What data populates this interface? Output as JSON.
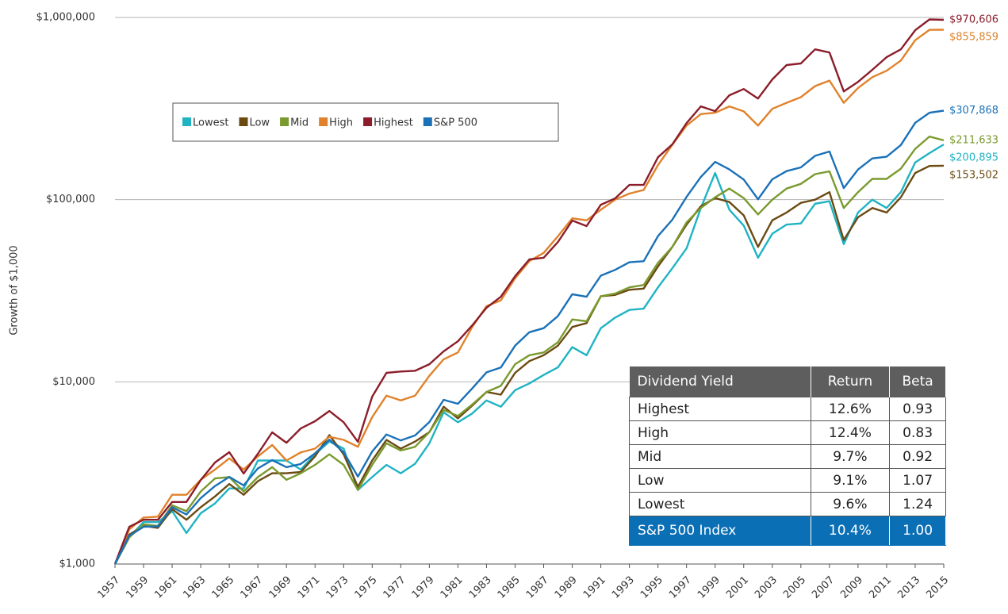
{
  "chart_data": {
    "type": "line",
    "y_label": "Growth of $1,000",
    "log_y": true,
    "grid": true,
    "x": [
      1957,
      1958,
      1959,
      1960,
      1961,
      1962,
      1963,
      1964,
      1965,
      1966,
      1967,
      1968,
      1969,
      1970,
      1971,
      1972,
      1973,
      1974,
      1975,
      1976,
      1977,
      1978,
      1979,
      1980,
      1981,
      1982,
      1983,
      1984,
      1985,
      1986,
      1987,
      1988,
      1989,
      1990,
      1991,
      1992,
      1993,
      1994,
      1995,
      1996,
      1997,
      1998,
      1999,
      2000,
      2001,
      2002,
      2003,
      2004,
      2005,
      2006,
      2007,
      2008,
      2009,
      2010,
      2011,
      2012,
      2013,
      2014,
      2015
    ],
    "xlim": [
      1957,
      2015
    ],
    "xticks": [
      1957,
      1959,
      1961,
      1963,
      1965,
      1967,
      1969,
      1971,
      1973,
      1975,
      1977,
      1979,
      1981,
      1983,
      1985,
      1987,
      1989,
      1991,
      1993,
      1995,
      1997,
      1999,
      2001,
      2003,
      2005,
      2007,
      2009,
      2011,
      2013,
      2015
    ],
    "ylim": [
      1000,
      1000000
    ],
    "yticks": [
      {
        "value": 1000,
        "label": "$1,000"
      },
      {
        "value": 10000,
        "label": "$10,000"
      },
      {
        "value": 100000,
        "label": "$100,000"
      },
      {
        "value": 1000000,
        "label": "$1,000,000"
      }
    ],
    "series": [
      {
        "name": "Lowest",
        "color": "#1fb3c3",
        "end_label": "$200,895",
        "values": [
          1000,
          1400,
          1700,
          1700,
          1950,
          1480,
          1900,
          2150,
          2600,
          2600,
          3700,
          3700,
          3700,
          3300,
          4000,
          4700,
          4300,
          2550,
          3000,
          3500,
          3150,
          3550,
          4600,
          6800,
          6000,
          6700,
          7900,
          7300,
          9000,
          9800,
          10900,
          12000,
          15500,
          14000,
          19700,
          22500,
          24800,
          25200,
          33000,
          42000,
          54000,
          90000,
          140000,
          88000,
          72000,
          48000,
          65000,
          73000,
          74000,
          95000,
          98000,
          57000,
          85000,
          100000,
          90000,
          110000,
          160000,
          180000,
          200895
        ]
      },
      {
        "name": "Low",
        "color": "#6b4a12",
        "end_label": "$153,502",
        "values": [
          1000,
          1450,
          1620,
          1580,
          2000,
          1750,
          2050,
          2350,
          2750,
          2400,
          2850,
          3150,
          3150,
          3200,
          3900,
          5100,
          4000,
          2650,
          3700,
          4800,
          4300,
          4700,
          5300,
          7300,
          6300,
          7400,
          8800,
          8500,
          11200,
          13000,
          14000,
          15800,
          20000,
          21000,
          29500,
          30000,
          32000,
          32500,
          43000,
          55000,
          73000,
          92000,
          102000,
          97000,
          82000,
          55000,
          77000,
          85000,
          96000,
          100000,
          110000,
          60000,
          80000,
          90000,
          85000,
          103000,
          140000,
          153000,
          153502
        ]
      },
      {
        "name": "Mid",
        "color": "#7a9a2e",
        "end_label": "$211,633",
        "values": [
          1000,
          1400,
          1650,
          1620,
          2100,
          1950,
          2500,
          2950,
          3000,
          2500,
          3000,
          3400,
          2900,
          3150,
          3500,
          4000,
          3500,
          2550,
          3500,
          4600,
          4200,
          4400,
          5300,
          7000,
          6500,
          7500,
          8800,
          9500,
          12500,
          14000,
          14500,
          16500,
          22000,
          21500,
          29500,
          30500,
          33000,
          34000,
          45000,
          55000,
          75000,
          90000,
          103000,
          115000,
          102000,
          83000,
          100000,
          115000,
          122000,
          138000,
          143000,
          90000,
          110000,
          130000,
          130000,
          148000,
          190000,
          222000,
          211633
        ]
      },
      {
        "name": "High",
        "color": "#e0822b",
        "end_label": "$855,859",
        "values": [
          1000,
          1550,
          1800,
          1820,
          2400,
          2400,
          2900,
          3300,
          3800,
          3300,
          3900,
          4500,
          3700,
          4100,
          4300,
          5000,
          4800,
          4400,
          6400,
          8400,
          7900,
          8400,
          10800,
          13300,
          14500,
          20000,
          26000,
          28000,
          37000,
          46000,
          51000,
          63000,
          79000,
          77000,
          88000,
          100000,
          108000,
          113000,
          155000,
          200000,
          255000,
          295000,
          300000,
          325000,
          305000,
          255000,
          315000,
          340000,
          365000,
          420000,
          450000,
          340000,
          410000,
          470000,
          510000,
          580000,
          750000,
          855000,
          855859
        ]
      },
      {
        "name": "Highest",
        "color": "#8b1e2a",
        "end_label": "$970,606",
        "values": [
          1000,
          1600,
          1750,
          1750,
          2190,
          2190,
          2890,
          3610,
          4110,
          3140,
          4030,
          5280,
          4630,
          5550,
          6080,
          6920,
          6000,
          4690,
          8290,
          11200,
          11400,
          11500,
          12500,
          14700,
          16700,
          20400,
          25500,
          29300,
          38000,
          47000,
          48000,
          58500,
          76800,
          71600,
          93800,
          101600,
          120400,
          120400,
          171000,
          201000,
          263000,
          325000,
          306000,
          374000,
          405000,
          359000,
          457000,
          548000,
          559000,
          668000,
          642000,
          393000,
          443000,
          516000,
          605000,
          668000,
          851000,
          975000,
          970606
        ]
      },
      {
        "name": "S&P 500",
        "color": "#1a71b8",
        "end_label": "$307,868",
        "values": [
          1000,
          1430,
          1600,
          1610,
          2050,
          1870,
          2300,
          2680,
          3010,
          2700,
          3350,
          3720,
          3400,
          3540,
          4050,
          4810,
          4110,
          3020,
          4150,
          5140,
          4770,
          5080,
          6020,
          7970,
          7580,
          9200,
          11270,
          11980,
          15780,
          18720,
          19700,
          22970,
          30250,
          29300,
          38250,
          41160,
          45300,
          45900,
          63100,
          77600,
          103500,
          133100,
          161100,
          146400,
          129000,
          100500,
          129300,
          143400,
          150400,
          174100,
          183700,
          115700,
          146300,
          168300,
          171900,
          199400,
          264000,
          300100,
          307868
        ]
      }
    ]
  },
  "table": {
    "columns": [
      "Dividend Yield",
      "Return",
      "Beta"
    ],
    "rows": [
      [
        "Highest",
        "12.6%",
        "0.93"
      ],
      [
        "High",
        "12.4%",
        "0.83"
      ],
      [
        "Mid",
        "9.7%",
        "0.92"
      ],
      [
        "Low",
        "9.1%",
        "1.07"
      ],
      [
        "Lowest",
        "9.6%",
        "1.24"
      ],
      [
        "S&P 500 Index",
        "10.4%",
        "1.00"
      ]
    ]
  }
}
